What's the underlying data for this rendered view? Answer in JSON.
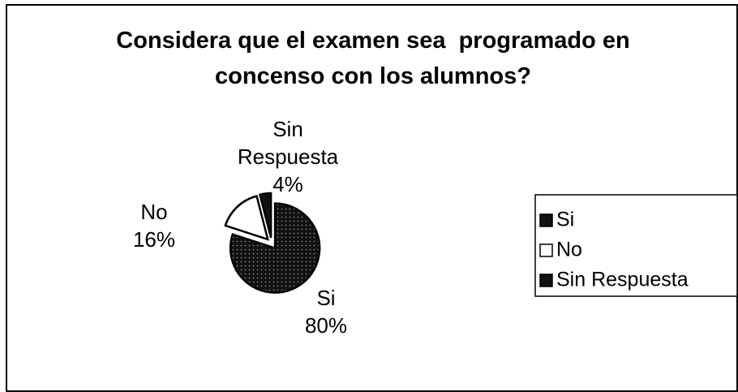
{
  "chart_data": {
    "type": "pie",
    "title": "Considera que el examen sea  programado en concenso con los alumnos?",
    "categories": [
      "Si",
      "No",
      "Sin Respuesta"
    ],
    "values": [
      80,
      16,
      4
    ],
    "value_labels": [
      "80%",
      "16%",
      "4%"
    ],
    "colors": [
      "#111111",
      "#ffffff",
      "#111111"
    ],
    "legend": "right"
  }
}
